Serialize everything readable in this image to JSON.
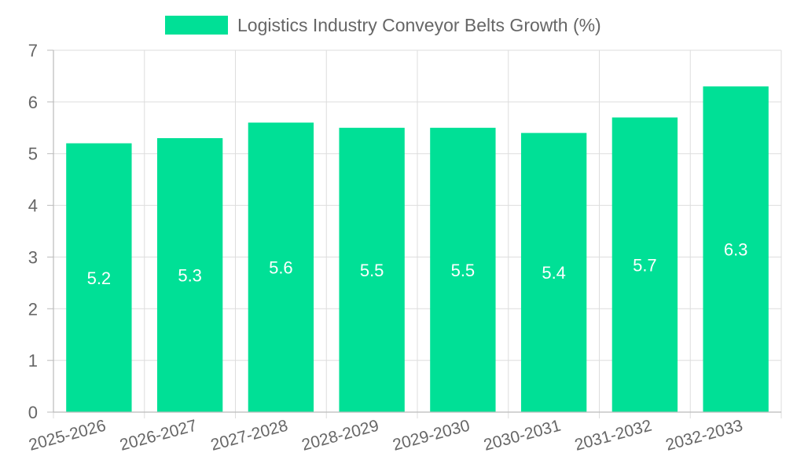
{
  "chart_data": {
    "type": "bar",
    "categories": [
      "2025-2026",
      "2026-2027",
      "2027-2028",
      "2028-2029",
      "2029-2030",
      "2030-2031",
      "2031-2032",
      "2032-2033"
    ],
    "series": [
      {
        "name": "Logistics Industry Conveyor Belts Growth (%)",
        "values": [
          5.2,
          5.3,
          5.6,
          5.5,
          5.5,
          5.4,
          5.7,
          6.3
        ],
        "color": "#00e096"
      }
    ],
    "ylim": [
      0,
      7
    ],
    "yticks": [
      0,
      1,
      2,
      3,
      4,
      5,
      6,
      7
    ],
    "grid": true,
    "legend": "top-center",
    "data_labels": true
  }
}
